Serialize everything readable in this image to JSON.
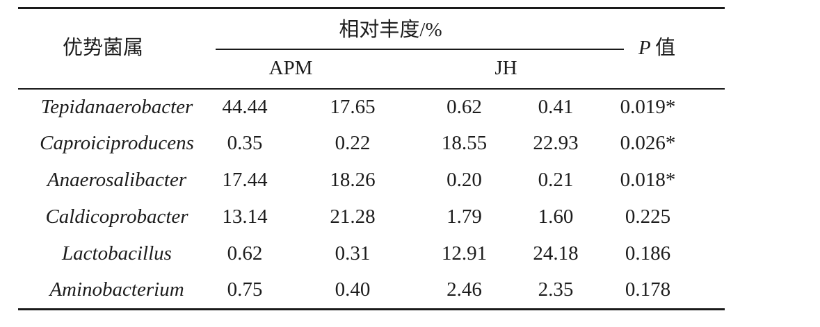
{
  "figure": {
    "background": "#ffffff",
    "text_color": "#1c1c1c",
    "rule_color": "#1a1a1a",
    "header": {
      "genus_column": "优势菌属",
      "abundance_spanner": "相对丰度/%",
      "group_apm": "APM",
      "group_jh": "JH",
      "p_letter": "P",
      "p_word": "值"
    },
    "chart_data": {
      "type": "table",
      "title": "",
      "columns": [
        "优势菌属",
        "APM",
        "APM",
        "JH",
        "JH",
        "P 值"
      ],
      "rows": [
        {
          "genus": "Tepidanaerobacter",
          "values": [
            "44.44",
            "17.65",
            "0.62",
            "0.41"
          ],
          "p": "0.019*"
        },
        {
          "genus": "Caproiciproducens",
          "values": [
            "0.35",
            "0.22",
            "18.55",
            "22.93"
          ],
          "p": "0.026*"
        },
        {
          "genus": "Anaerosalibacter",
          "values": [
            "17.44",
            "18.26",
            "0.20",
            "0.21"
          ],
          "p": "0.018*"
        },
        {
          "genus": "Caldicoprobacter",
          "values": [
            "13.14",
            "21.28",
            "1.79",
            "1.60"
          ],
          "p": "0.225"
        },
        {
          "genus": "Lactobacillus",
          "values": [
            "0.62",
            "0.31",
            "12.91",
            "24.18"
          ],
          "p": "0.186"
        },
        {
          "genus": "Aminobacterium",
          "values": [
            "0.75",
            "0.40",
            "2.46",
            "2.35"
          ],
          "p": "0.178"
        }
      ]
    }
  }
}
